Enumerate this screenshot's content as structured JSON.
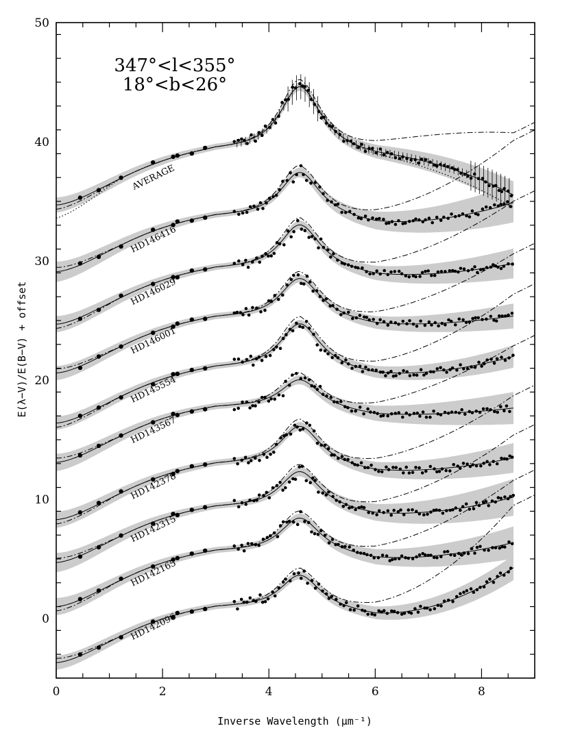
{
  "chart_data": {
    "type": "line",
    "title_lines": [
      "347°<l<355°",
      "18°<b<26°"
    ],
    "xlabel": "Inverse Wavelength (μm⁻¹)",
    "ylabel": "E(λ−V)/E(B−V) + offset",
    "xlim": [
      0,
      9
    ],
    "ylim": [
      -5,
      50
    ],
    "x_ticks": [
      0,
      2,
      4,
      6,
      8
    ],
    "y_ticks": [
      0,
      10,
      20,
      30,
      40,
      50
    ],
    "grid": false,
    "series": [
      {
        "name": "AVERAGE",
        "offset": 34.7,
        "bump": 5.6,
        "fuv": 3.5,
        "data_end": 35.4,
        "band": 0.9,
        "label_x": 1.85,
        "label_y": 36.8
      },
      {
        "name": "HD146416",
        "offset": 29.1,
        "bump": 4.0,
        "fuv": 4.2,
        "data_end": 34.8,
        "band": 1.4,
        "label_x": 1.85,
        "label_y": 31.6
      },
      {
        "name": "HD146029",
        "offset": 24.7,
        "bump": 4.0,
        "fuv": 3.9,
        "data_end": 29.7,
        "band": 1.0,
        "label_x": 1.85,
        "label_y": 27.2
      },
      {
        "name": "HD146001",
        "offset": 20.6,
        "bump": 3.6,
        "fuv": 3.2,
        "data_end": 25.3,
        "band": 0.8,
        "label_x": 1.85,
        "label_y": 23.1
      },
      {
        "name": "HD145554",
        "offset": 16.4,
        "bump": 4.0,
        "fuv": 3.0,
        "data_end": 21.9,
        "band": 0.7,
        "label_x": 1.85,
        "label_y": 19.0
      },
      {
        "name": "HD143567",
        "offset": 13.1,
        "bump": 2.6,
        "fuv": 3.2,
        "data_end": 17.6,
        "band": 1.1,
        "label_x": 1.85,
        "label_y": 15.6
      },
      {
        "name": "HD142378",
        "offset": 8.3,
        "bump": 3.5,
        "fuv": 3.0,
        "data_end": 13.4,
        "band": 1.0,
        "label_x": 1.85,
        "label_y": 10.9
      },
      {
        "name": "HD142315",
        "offset": 4.7,
        "bump": 3.3,
        "fuv": 3.0,
        "data_end": 10.1,
        "band": 1.3,
        "label_x": 1.85,
        "label_y": 7.3
      },
      {
        "name": "HD142165",
        "offset": 1.0,
        "bump": 3.1,
        "fuv": 2.6,
        "data_end": 6.3,
        "band": 1.1,
        "label_x": 1.85,
        "label_y": 3.6
      },
      {
        "name": "HD142096",
        "offset": -3.7,
        "bump": 3.0,
        "fuv": 2.6,
        "data_end": 4.2,
        "band": 0.8,
        "label_x": 1.85,
        "label_y": -0.9
      }
    ],
    "reference_curve": {
      "style": "dash-dot",
      "rise_to": 6.2,
      "x_end": 9.0
    },
    "uncertainty_band": {
      "color": "#cccccc"
    },
    "average_dotted_low": 33.6,
    "colors": {
      "data": "#000000",
      "fit": "#000000",
      "band": "#cccccc",
      "axis": "#000000"
    }
  }
}
